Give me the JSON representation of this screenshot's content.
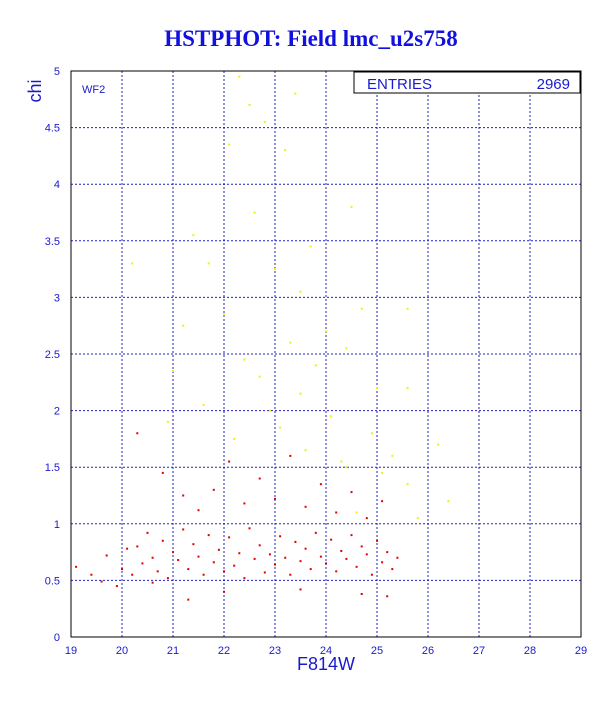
{
  "title": "HSTPHOT: Field lmc_u2s758",
  "panel_label": "WF2",
  "stats_box": {
    "label": "ENTRIES",
    "value": "2969"
  },
  "colors": {
    "title": "#1010e0",
    "axis": "#1a1acc",
    "grid": "#2020c0",
    "frame": "#000000",
    "point_primary": "#e00000",
    "point_secondary": "#f2f200"
  },
  "chart_data": {
    "type": "scatter",
    "xlabel": "F814W",
    "ylabel": "chi",
    "xlim": [
      19,
      29
    ],
    "ylim": [
      0,
      5
    ],
    "x_ticks": [
      "19",
      "20",
      "21",
      "22",
      "23",
      "24",
      "25",
      "26",
      "27",
      "28",
      "29"
    ],
    "y_ticks": [
      "0",
      "0.5",
      "1",
      "1.5",
      "2",
      "2.5",
      "3",
      "3.5",
      "4",
      "4.5",
      "5"
    ],
    "grid": true,
    "entries": 2969,
    "series": [
      {
        "color": "#e00000",
        "points": [
          [
            19.1,
            0.62
          ],
          [
            19.4,
            0.55
          ],
          [
            19.6,
            0.49
          ],
          [
            19.7,
            0.72
          ],
          [
            19.9,
            0.45
          ],
          [
            20.0,
            0.6
          ],
          [
            20.1,
            0.78
          ],
          [
            20.2,
            0.55
          ],
          [
            20.3,
            0.8
          ],
          [
            20.4,
            0.65
          ],
          [
            20.5,
            0.92
          ],
          [
            20.6,
            0.7
          ],
          [
            20.7,
            0.58
          ],
          [
            20.8,
            0.85
          ],
          [
            20.9,
            0.52
          ],
          [
            21.0,
            0.75
          ],
          [
            21.1,
            0.68
          ],
          [
            21.2,
            0.95
          ],
          [
            21.3,
            0.6
          ],
          [
            21.4,
            0.82
          ],
          [
            21.5,
            0.71
          ],
          [
            21.6,
            0.55
          ],
          [
            21.7,
            0.9
          ],
          [
            21.8,
            0.66
          ],
          [
            21.9,
            0.77
          ],
          [
            22.0,
            0.58
          ],
          [
            22.1,
            0.88
          ],
          [
            22.2,
            0.63
          ],
          [
            22.3,
            0.74
          ],
          [
            22.4,
            0.52
          ],
          [
            22.5,
            0.96
          ],
          [
            22.6,
            0.69
          ],
          [
            22.7,
            0.81
          ],
          [
            22.8,
            0.57
          ],
          [
            22.9,
            0.73
          ],
          [
            23.0,
            0.64
          ],
          [
            23.1,
            0.89
          ],
          [
            23.2,
            0.7
          ],
          [
            23.3,
            0.55
          ],
          [
            23.4,
            0.84
          ],
          [
            23.5,
            0.67
          ],
          [
            23.6,
            0.78
          ],
          [
            23.7,
            0.6
          ],
          [
            23.8,
            0.92
          ],
          [
            23.9,
            0.71
          ],
          [
            24.0,
            0.65
          ],
          [
            24.1,
            0.86
          ],
          [
            24.2,
            0.58
          ],
          [
            24.3,
            0.76
          ],
          [
            24.4,
            0.69
          ],
          [
            24.5,
            0.9
          ],
          [
            24.6,
            0.62
          ],
          [
            24.7,
            0.8
          ],
          [
            24.8,
            0.73
          ],
          [
            24.9,
            0.55
          ],
          [
            25.0,
            0.85
          ],
          [
            25.1,
            0.66
          ],
          [
            25.2,
            0.75
          ],
          [
            25.3,
            0.6
          ],
          [
            25.4,
            0.7
          ],
          [
            20.3,
            1.8
          ],
          [
            20.8,
            1.45
          ],
          [
            21.2,
            1.25
          ],
          [
            21.5,
            1.12
          ],
          [
            21.8,
            1.3
          ],
          [
            22.1,
            1.55
          ],
          [
            22.4,
            1.18
          ],
          [
            22.7,
            1.4
          ],
          [
            23.0,
            1.22
          ],
          [
            23.3,
            1.6
          ],
          [
            23.6,
            1.15
          ],
          [
            23.9,
            1.35
          ],
          [
            24.2,
            1.1
          ],
          [
            24.5,
            1.28
          ],
          [
            24.8,
            1.05
          ],
          [
            25.1,
            1.2
          ],
          [
            22.0,
            0.4
          ],
          [
            23.5,
            0.42
          ],
          [
            24.7,
            0.38
          ],
          [
            21.3,
            0.33
          ],
          [
            25.2,
            0.36
          ],
          [
            20.6,
            0.48
          ]
        ]
      },
      {
        "color": "#f2f200",
        "points": [
          [
            22.3,
            4.95
          ],
          [
            22.5,
            4.7
          ],
          [
            23.4,
            4.8
          ],
          [
            22.8,
            4.55
          ],
          [
            22.1,
            4.35
          ],
          [
            23.2,
            4.3
          ],
          [
            24.5,
            3.8
          ],
          [
            22.6,
            3.75
          ],
          [
            21.4,
            3.55
          ],
          [
            23.7,
            3.45
          ],
          [
            20.2,
            3.3
          ],
          [
            23.0,
            3.25
          ],
          [
            21.7,
            3.3
          ],
          [
            23.5,
            3.05
          ],
          [
            22.0,
            2.85
          ],
          [
            24.7,
            2.9
          ],
          [
            25.6,
            2.9
          ],
          [
            21.2,
            2.75
          ],
          [
            23.3,
            2.6
          ],
          [
            24.4,
            2.55
          ],
          [
            21.0,
            2.35
          ],
          [
            22.4,
            2.45
          ],
          [
            23.8,
            2.4
          ],
          [
            25.0,
            2.2
          ],
          [
            25.6,
            2.2
          ],
          [
            21.6,
            2.05
          ],
          [
            22.9,
            2.0
          ],
          [
            24.1,
            1.95
          ],
          [
            24.9,
            1.8
          ],
          [
            20.9,
            1.9
          ],
          [
            22.2,
            1.75
          ],
          [
            23.6,
            1.65
          ],
          [
            25.3,
            1.6
          ],
          [
            26.2,
            1.7
          ],
          [
            24.4,
            1.5
          ],
          [
            25.1,
            1.45
          ],
          [
            25.6,
            1.35
          ],
          [
            26.4,
            1.2
          ],
          [
            24.6,
            1.1
          ],
          [
            25.8,
            1.05
          ],
          [
            22.7,
            2.3
          ],
          [
            23.1,
            1.85
          ],
          [
            24.0,
            2.7
          ],
          [
            23.5,
            2.15
          ],
          [
            24.3,
            1.55
          ]
        ]
      }
    ]
  }
}
